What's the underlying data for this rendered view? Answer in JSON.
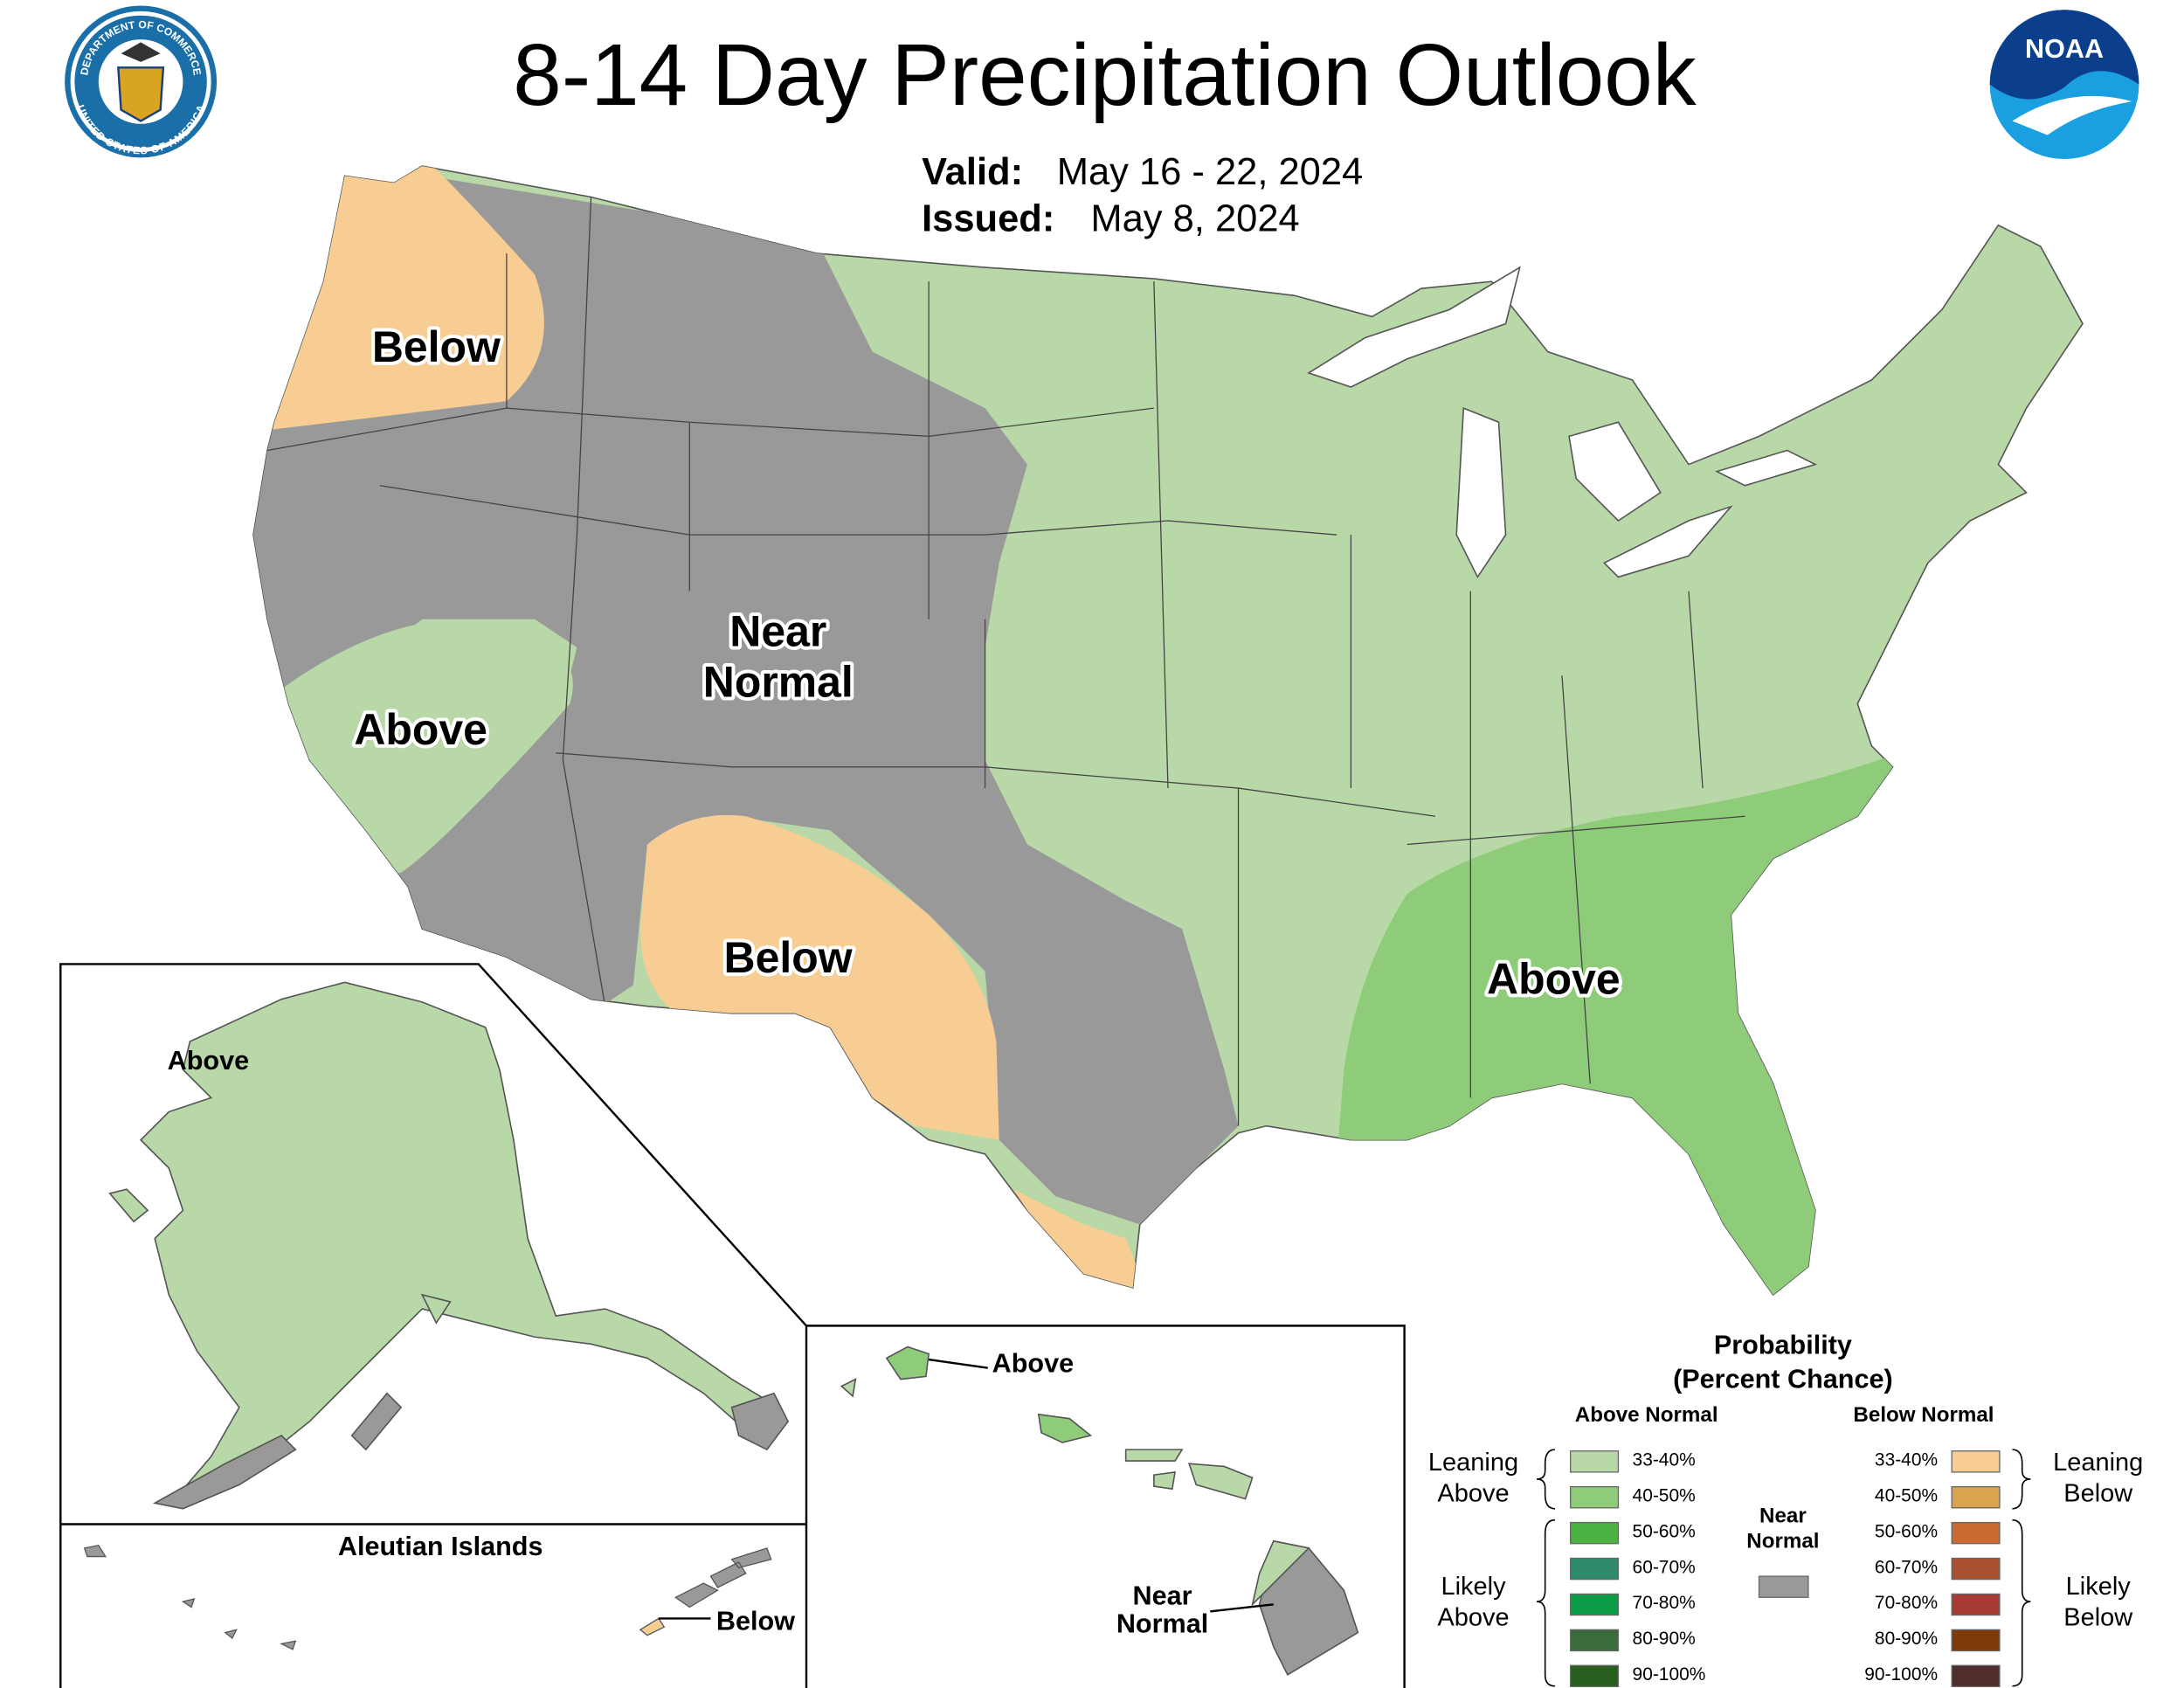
{
  "header": {
    "title": "8-14 Day Precipitation Outlook",
    "valid_label": "Valid:",
    "valid": "May 16 - 22, 2024",
    "issued_label": "Issued:",
    "issued": "May 8, 2024",
    "seal_top": "DEPARTMENT OF COMMERCE",
    "seal_bottom": "UNITED STATES OF AMERICA",
    "noaa": "NOAA"
  },
  "conus_labels": [
    {
      "lines": [
        "Below"
      ]
    },
    {
      "lines": [
        "Near",
        "Normal"
      ]
    },
    {
      "lines": [
        "Above"
      ]
    },
    {
      "lines": [
        "Below"
      ]
    },
    {
      "lines": [
        "Above"
      ]
    }
  ],
  "alaska": {
    "label": "Above"
  },
  "aleutians": {
    "title": "Aleutian Islands",
    "label": "Below"
  },
  "hawaii": {
    "above": "Above",
    "near_normal": [
      "Near",
      "Normal"
    ]
  },
  "legend": {
    "title": [
      "Probability",
      "(Percent Chance)"
    ],
    "above": {
      "heading": "Above Normal",
      "leaning": [
        "Leaning",
        "Above"
      ],
      "likely": [
        "Likely",
        "Above"
      ],
      "items": [
        {
          "label": "33-40%",
          "color": "#b8d8a8"
        },
        {
          "label": "40-50%",
          "color": "#8fcc7a"
        },
        {
          "label": "50-60%",
          "color": "#4bb142"
        },
        {
          "label": "60-70%",
          "color": "#2e8a6a"
        },
        {
          "label": "70-80%",
          "color": "#0b9b45"
        },
        {
          "label": "80-90%",
          "color": "#3b6b3d"
        },
        {
          "label": "90-100%",
          "color": "#285e1e"
        }
      ]
    },
    "below": {
      "heading": "Below Normal",
      "leaning": [
        "Leaning",
        "Below"
      ],
      "likely": [
        "Likely",
        "Below"
      ],
      "items": [
        {
          "label": "33-40%",
          "color": "#f7cd93"
        },
        {
          "label": "40-50%",
          "color": "#d9a450"
        },
        {
          "label": "50-60%",
          "color": "#c96a32"
        },
        {
          "label": "60-70%",
          "color": "#a84f2f"
        },
        {
          "label": "70-80%",
          "color": "#a63b34"
        },
        {
          "label": "80-90%",
          "color": "#7f3a0a"
        },
        {
          "label": "90-100%",
          "color": "#4f2d2d"
        }
      ]
    },
    "near_normal": {
      "lines": [
        "Near",
        "Normal"
      ],
      "color": "#999999"
    }
  }
}
